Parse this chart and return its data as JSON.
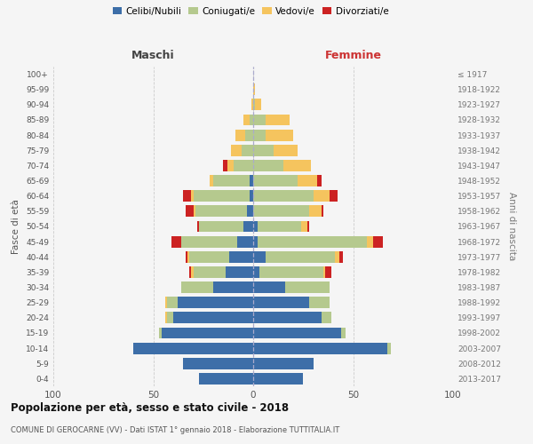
{
  "age_groups": [
    "0-4",
    "5-9",
    "10-14",
    "15-19",
    "20-24",
    "25-29",
    "30-34",
    "35-39",
    "40-44",
    "45-49",
    "50-54",
    "55-59",
    "60-64",
    "65-69",
    "70-74",
    "75-79",
    "80-84",
    "85-89",
    "90-94",
    "95-99",
    "100+"
  ],
  "birth_years": [
    "2013-2017",
    "2008-2012",
    "2003-2007",
    "1998-2002",
    "1993-1997",
    "1988-1992",
    "1983-1987",
    "1978-1982",
    "1973-1977",
    "1968-1972",
    "1963-1967",
    "1958-1962",
    "1953-1957",
    "1948-1952",
    "1943-1947",
    "1938-1942",
    "1933-1937",
    "1928-1932",
    "1923-1927",
    "1918-1922",
    "≤ 1917"
  ],
  "maschi": {
    "celibi": [
      27,
      35,
      60,
      46,
      40,
      38,
      20,
      14,
      12,
      8,
      5,
      3,
      2,
      2,
      0,
      0,
      0,
      0,
      0,
      0,
      0
    ],
    "coniugati": [
      0,
      0,
      0,
      1,
      3,
      5,
      16,
      16,
      20,
      28,
      22,
      26,
      28,
      18,
      10,
      6,
      4,
      2,
      0,
      0,
      0
    ],
    "vedovi": [
      0,
      0,
      0,
      0,
      1,
      1,
      0,
      1,
      1,
      0,
      0,
      1,
      1,
      2,
      3,
      5,
      5,
      3,
      1,
      0,
      0
    ],
    "divorziati": [
      0,
      0,
      0,
      0,
      0,
      0,
      0,
      1,
      1,
      5,
      1,
      4,
      4,
      0,
      2,
      0,
      0,
      0,
      0,
      0,
      0
    ]
  },
  "femmine": {
    "nubili": [
      25,
      30,
      67,
      44,
      34,
      28,
      16,
      3,
      6,
      2,
      2,
      0,
      0,
      0,
      0,
      0,
      0,
      0,
      0,
      0,
      0
    ],
    "coniugate": [
      0,
      0,
      2,
      2,
      5,
      10,
      22,
      32,
      35,
      55,
      22,
      28,
      30,
      22,
      15,
      10,
      6,
      6,
      1,
      0,
      0
    ],
    "vedove": [
      0,
      0,
      0,
      0,
      0,
      0,
      0,
      1,
      2,
      3,
      3,
      6,
      8,
      10,
      14,
      12,
      14,
      12,
      3,
      1,
      0
    ],
    "divorziate": [
      0,
      0,
      0,
      0,
      0,
      0,
      0,
      3,
      2,
      5,
      1,
      1,
      4,
      2,
      0,
      0,
      0,
      0,
      0,
      0,
      0
    ]
  },
  "colors": {
    "celibi_nubili": "#3d6ea8",
    "coniugati": "#b5c98e",
    "vedovi": "#f5c45e",
    "divorziati": "#cc2222"
  },
  "xlim": 100,
  "title": "Popolazione per età, sesso e stato civile - 2018",
  "subtitle": "COMUNE DI GEROCARNE (VV) - Dati ISTAT 1° gennaio 2018 - Elaborazione TUTTITALIA.IT",
  "xlabel_left": "Maschi",
  "xlabel_right": "Femmine",
  "ylabel_left": "Fasce di età",
  "ylabel_right": "Anni di nascita",
  "legend_labels": [
    "Celibi/Nubili",
    "Coniugati/e",
    "Vedovi/e",
    "Divorziati/e"
  ],
  "background_color": "#f5f5f5"
}
